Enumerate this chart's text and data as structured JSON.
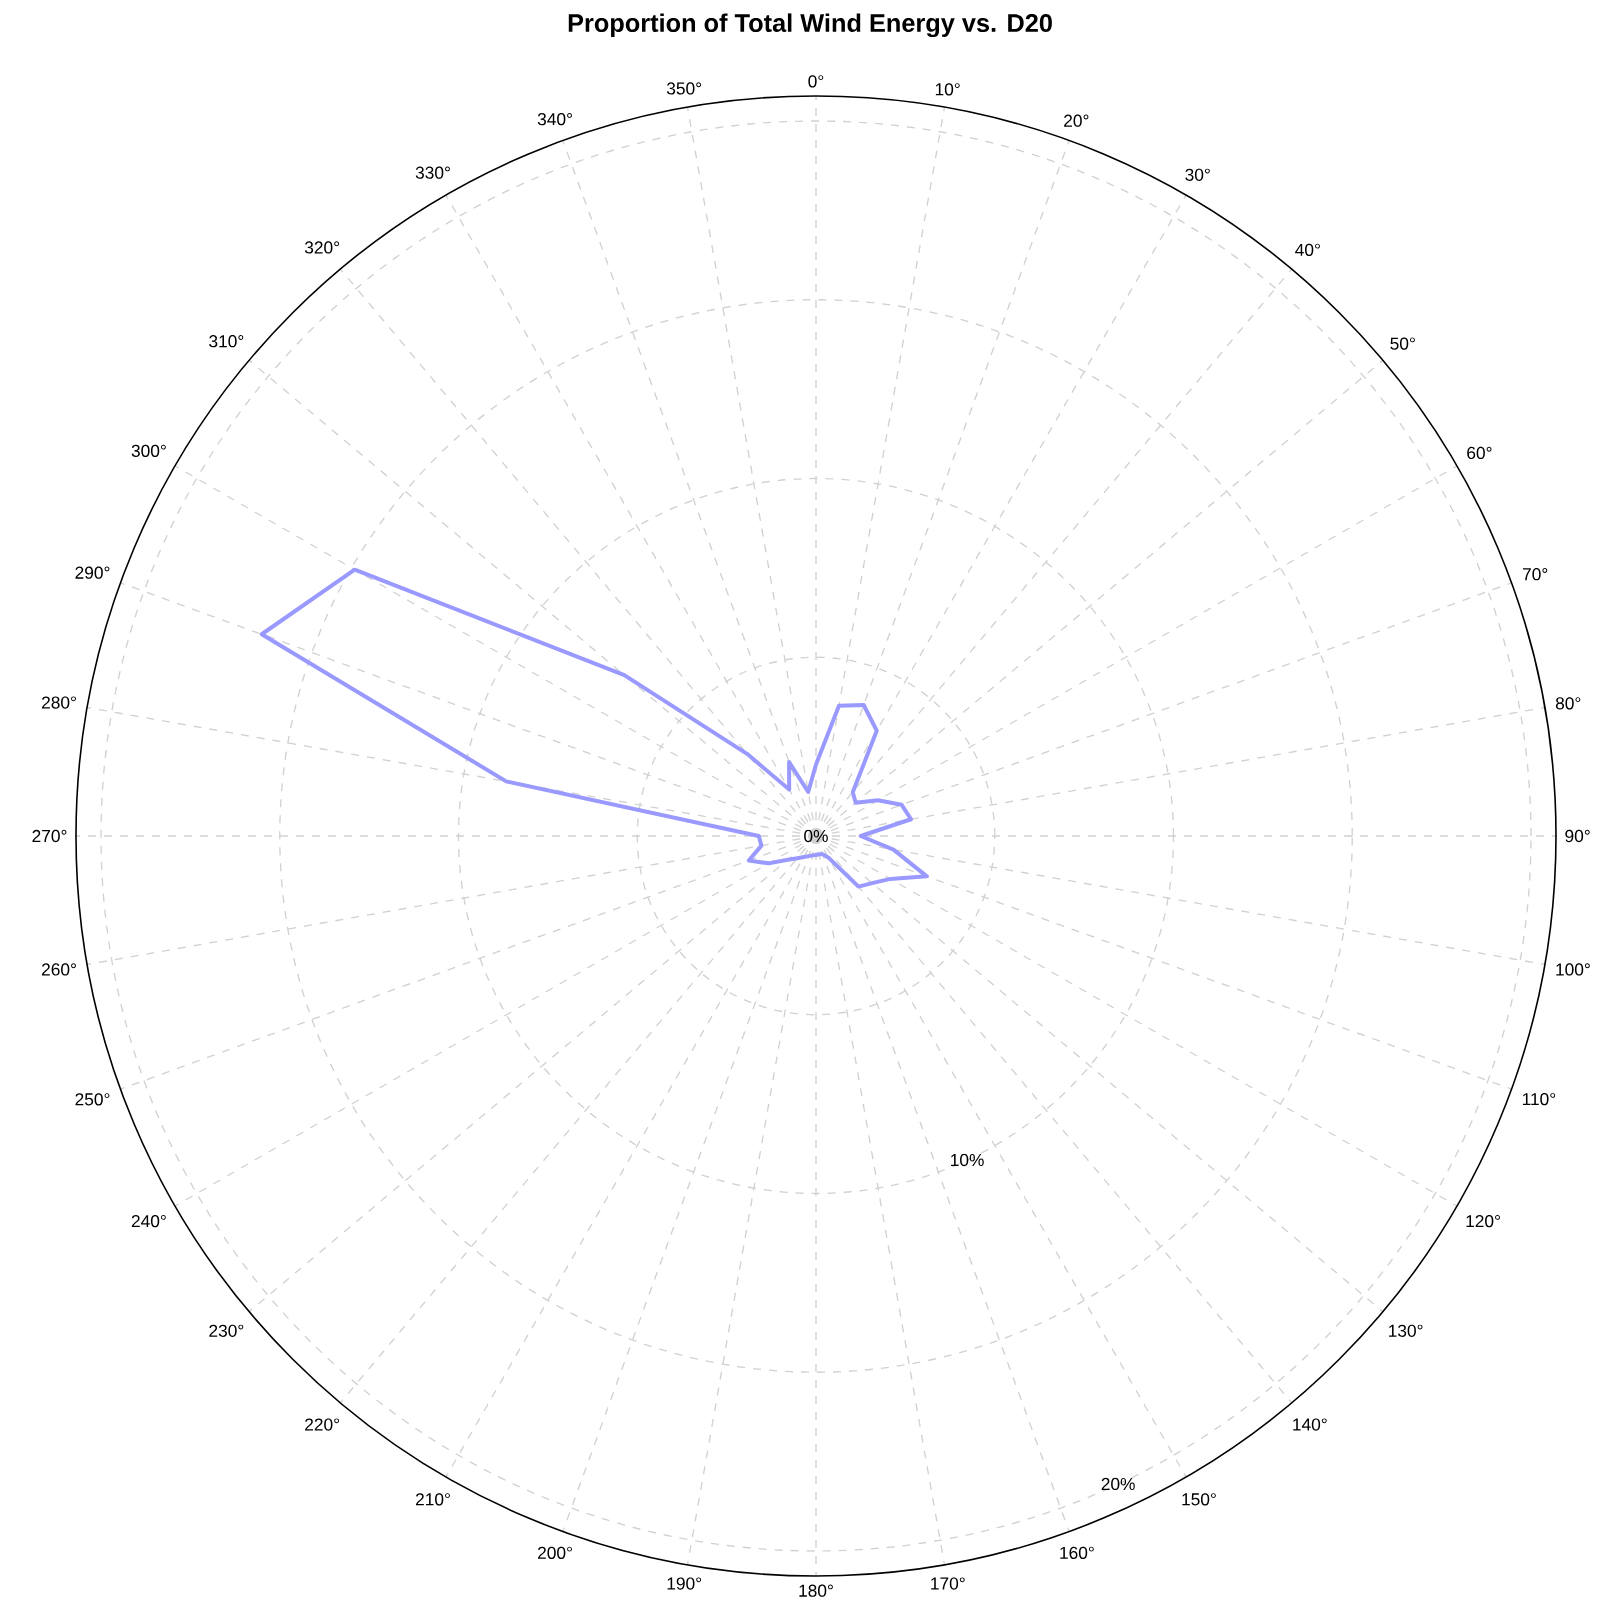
{
  "chart_data": {
    "type": "radar",
    "title": "Proportion of Total Wind Energy vs. D20",
    "categories": [
      "0°",
      "10°",
      "20°",
      "30°",
      "40°",
      "50°",
      "60°",
      "70°",
      "80°",
      "90°",
      "100°",
      "110°",
      "120°",
      "130°",
      "140°",
      "150°",
      "160°",
      "170°",
      "180°",
      "190°",
      "200°",
      "210°",
      "220°",
      "230°",
      "240°",
      "250°",
      "260°",
      "270°",
      "280°",
      "290°",
      "300°",
      "310°",
      "320°",
      "330°",
      "340°",
      "350°"
    ],
    "series": [
      {
        "color": "#9999ff",
        "values": [
          2.0,
          3.7,
          3.9,
          3.4,
          1.6,
          1.45,
          2.0,
          2.55,
          2.7,
          1.25,
          2.2,
          3.3,
          2.4,
          2.05,
          1.85,
          0.7,
          0.54,
          0.52,
          0.53,
          0.55,
          0.6,
          0.68,
          0.81,
          1.03,
          1.53,
          2.0,
          1.55,
          1.6,
          8.8,
          16.5,
          14.9,
          7.0,
          3.0,
          1.5,
          2.2,
          1.25
        ]
      }
    ],
    "ylim": [
      0,
      20.7
    ],
    "yticks": [
      {
        "value": 0,
        "label": "0%"
      },
      {
        "value": 10,
        "label": "10%"
      },
      {
        "value": 20,
        "label": "20%"
      }
    ],
    "grid": true
  }
}
